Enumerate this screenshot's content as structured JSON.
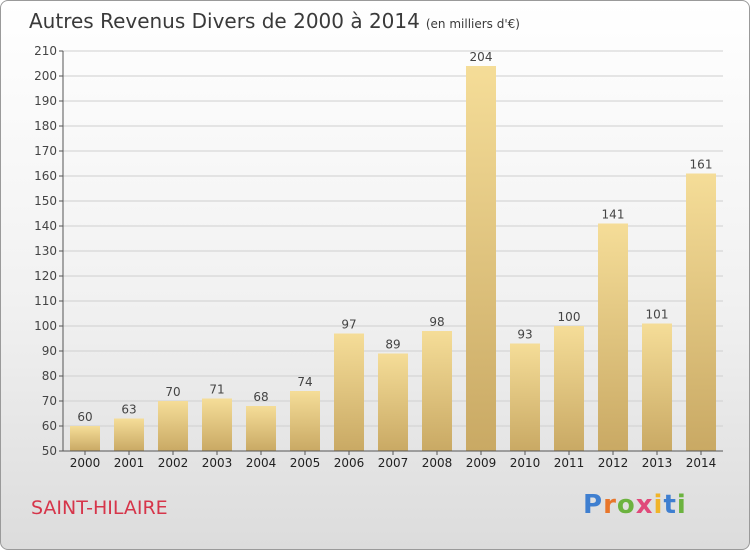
{
  "header": {
    "title": "Autres Revenus Divers de 2000 à 2014",
    "subtitle": "(en milliers d'€)"
  },
  "footer": {
    "commune": "SAINT-HILAIRE",
    "brand": "Proxiti"
  },
  "colors": {
    "bar_light": "#f5dd98",
    "bar_dark": "#c9a964",
    "axis": "#555555",
    "grid": "#cfcfcf",
    "commune_text": "#d6354a"
  },
  "chart_data": {
    "type": "bar",
    "title": "Autres Revenus Divers de 2000 à 2014",
    "subtitle": "(en milliers d'€)",
    "xlabel": "",
    "ylabel": "",
    "categories": [
      "2000",
      "2001",
      "2002",
      "2003",
      "2004",
      "2005",
      "2006",
      "2007",
      "2008",
      "2009",
      "2010",
      "2011",
      "2012",
      "2013",
      "2014"
    ],
    "values": [
      60,
      63,
      70,
      71,
      68,
      74,
      97,
      89,
      98,
      204,
      93,
      100,
      141,
      101,
      161
    ],
    "ylim": [
      50,
      210
    ],
    "yticks": [
      50,
      60,
      70,
      80,
      90,
      100,
      110,
      120,
      130,
      140,
      150,
      160,
      170,
      180,
      190,
      200,
      210
    ],
    "grid": true,
    "data_labels": true
  }
}
